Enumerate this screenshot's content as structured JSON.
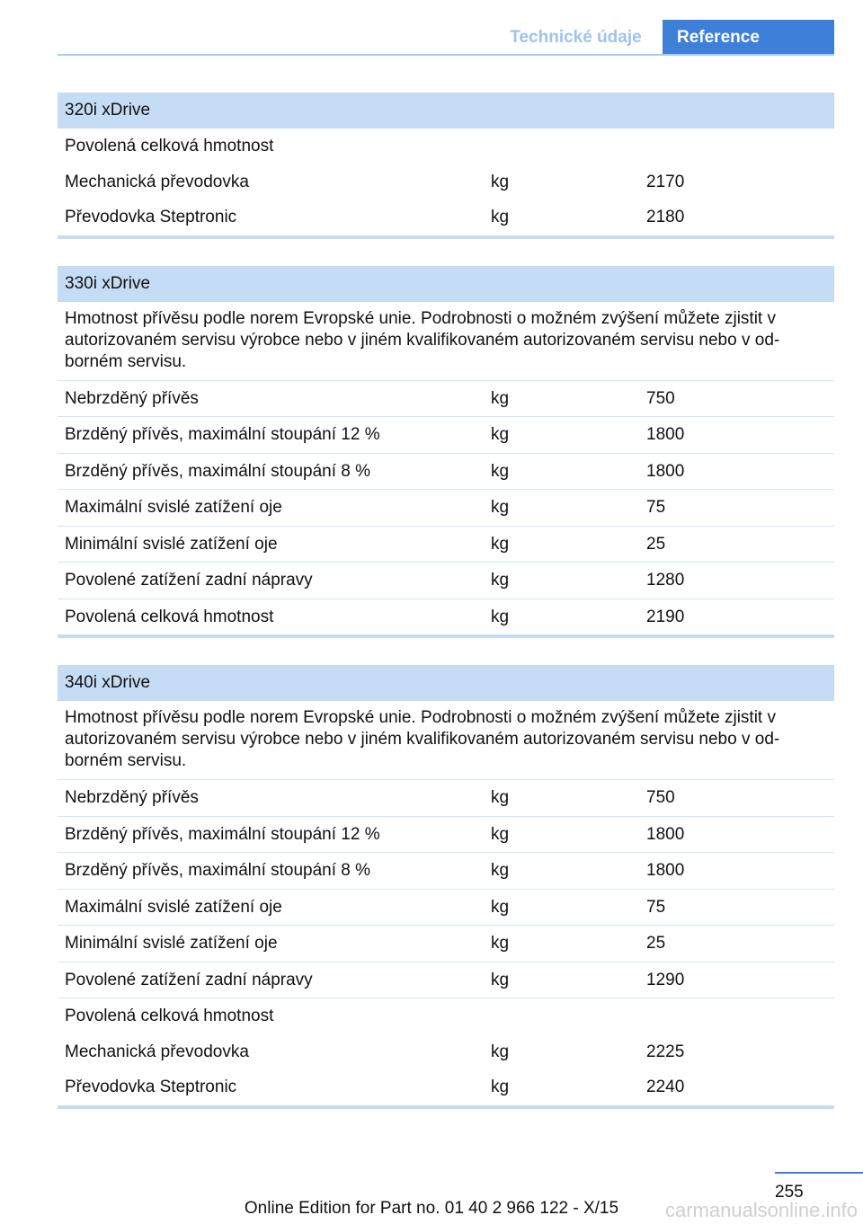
{
  "header": {
    "section": "Technické údaje",
    "chapter": "Reference"
  },
  "tables": [
    {
      "title": "320i xDrive",
      "groups": [
        [
          [
            "Povolená celková hmotnost"
          ],
          [
            "Mechanická převodovka",
            "kg",
            "2170"
          ],
          [
            "Převodovka Steptronic",
            "kg",
            "2180"
          ]
        ]
      ]
    },
    {
      "title": "330i xDrive",
      "note": "Hmotnost přívěsu podle norem Evropské unie. Podrobnosti o možném zvýšení můžete zjistit v autorizovaném servisu výrobce nebo v jiném kvalifikovaném autorizovaném servisu nebo v od­borném servisu.",
      "groups": [
        [
          [
            "Nebrzděný přívěs",
            "kg",
            "750"
          ]
        ],
        [
          [
            "Brzděný přívěs, maximální stoupání 12 %",
            "kg",
            "1800"
          ]
        ],
        [
          [
            "Brzděný přívěs, maximální stoupání 8 %",
            "kg",
            "1800"
          ]
        ],
        [
          [
            "Maximální svislé zatížení oje",
            "kg",
            "75"
          ]
        ],
        [
          [
            "Minimální svislé zatížení oje",
            "kg",
            "25"
          ]
        ],
        [
          [
            "Povolené zatížení zadní nápravy",
            "kg",
            "1280"
          ]
        ],
        [
          [
            "Povolená celková hmotnost",
            "kg",
            "2190"
          ]
        ]
      ]
    },
    {
      "title": "340i xDrive",
      "note": "Hmotnost přívěsu podle norem Evropské unie. Podrobnosti o možném zvýšení můžete zjistit v autorizovaném servisu výrobce nebo v jiném kvalifikovaném autorizovaném servisu nebo v od­borném servisu.",
      "groups": [
        [
          [
            "Nebrzděný přívěs",
            "kg",
            "750"
          ]
        ],
        [
          [
            "Brzděný přívěs, maximální stoupání 12 %",
            "kg",
            "1800"
          ]
        ],
        [
          [
            "Brzděný přívěs, maximální stoupání 8 %",
            "kg",
            "1800"
          ]
        ],
        [
          [
            "Maximální svislé zatížení oje",
            "kg",
            "75"
          ]
        ],
        [
          [
            "Minimální svislé zatížení oje",
            "kg",
            "25"
          ]
        ],
        [
          [
            "Povolené zatížení zadní nápravy",
            "kg",
            "1290"
          ]
        ],
        [
          [
            "Povolená celková hmotnost"
          ],
          [
            "Mechanická převodovka",
            "kg",
            "2225"
          ],
          [
            "Převodovka Steptronic",
            "kg",
            "2240"
          ]
        ]
      ]
    }
  ],
  "footer": {
    "page": "255",
    "edition": "Online Edition for Part no. 01 40 2 966 122 - X/15",
    "watermark": "carmanualsonline.info"
  }
}
